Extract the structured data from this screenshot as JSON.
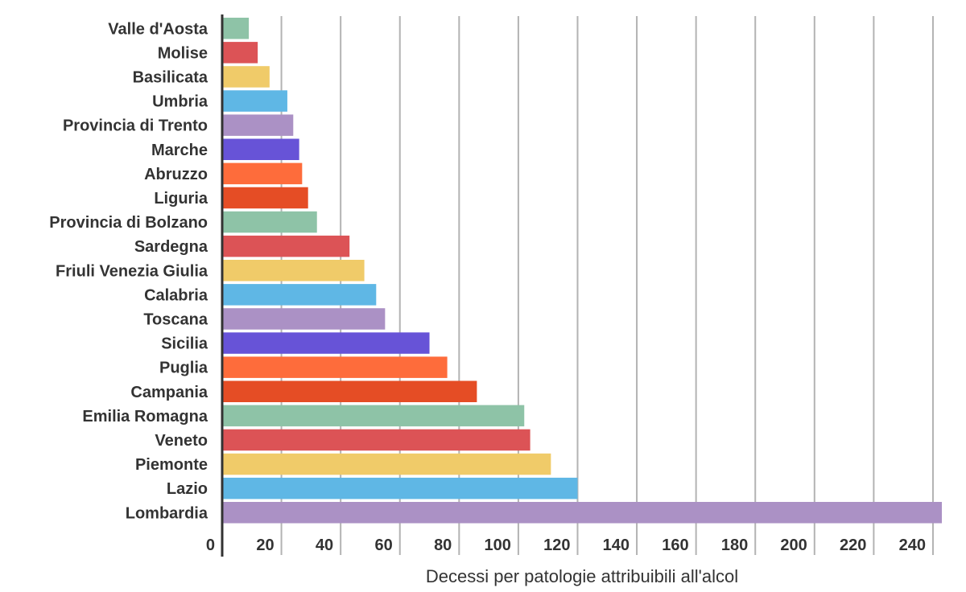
{
  "chart_data": {
    "type": "bar",
    "orientation": "horizontal",
    "categories": [
      "Valle d'Aosta",
      "Molise",
      "Basilicata",
      "Umbria",
      "Provincia di Trento",
      "Marche",
      "Abruzzo",
      "Liguria",
      "Provincia di Bolzano",
      "Sardegna",
      "Friuli Venezia Giulia",
      "Calabria",
      "Toscana",
      "Sicilia",
      "Puglia",
      "Campania",
      "Emilia Romagna",
      "Veneto",
      "Piemonte",
      "Lazio",
      "Lombardia"
    ],
    "values": [
      9,
      12,
      16,
      22,
      24,
      26,
      27,
      29,
      32,
      43,
      48,
      52,
      55,
      70,
      76,
      86,
      102,
      104,
      111,
      120,
      243
    ],
    "colors": [
      "#8ec3a7",
      "#dc5356",
      "#f0cb69",
      "#5fb7e5",
      "#ab91c5",
      "#6753d7",
      "#fe6c3b",
      "#e54d25",
      "#8ec3a7",
      "#dc5356",
      "#f0cb69",
      "#5fb7e5",
      "#ab91c5",
      "#6753d7",
      "#fe6c3b",
      "#e54d25",
      "#8ec3a7",
      "#dc5356",
      "#f0cb69",
      "#5fb7e5",
      "#ab91c5"
    ],
    "x_ticks": [
      "0",
      "20",
      "40",
      "60",
      "80",
      "100",
      "120",
      "140",
      "160",
      "180",
      "200",
      "220",
      "240"
    ],
    "xlim": [
      0,
      243
    ],
    "xlabel": "Decessi per patologie attribuibili all'alcol",
    "ylabel": "",
    "title": "",
    "grid": true,
    "legend": "none"
  }
}
